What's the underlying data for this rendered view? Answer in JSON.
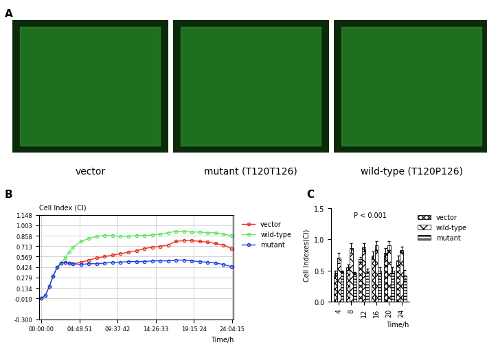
{
  "panel_a": {
    "panel": "A",
    "images": [
      "vector",
      "mutant (T120T126)",
      "wild-type (T120P126)"
    ]
  },
  "chart_data": [
    {
      "panel": "B",
      "type": "line",
      "y_label": "Cell Index (CI)",
      "x_label": "Time/h",
      "x": [
        0,
        0.5,
        1,
        1.5,
        2,
        2.5,
        3,
        3.5,
        4,
        5,
        6,
        7,
        8,
        9,
        10,
        11,
        12,
        13,
        14,
        15,
        16,
        17,
        18,
        19,
        20,
        21,
        22,
        23,
        24
      ],
      "series": [
        {
          "name": "vector",
          "color": "#e8321e",
          "marker": "o",
          "values": [
            -0.01,
            0.03,
            0.15,
            0.3,
            0.42,
            0.48,
            0.49,
            0.48,
            0.47,
            0.49,
            0.52,
            0.55,
            0.57,
            0.59,
            0.61,
            0.63,
            0.65,
            0.68,
            0.7,
            0.71,
            0.73,
            0.78,
            0.79,
            0.79,
            0.78,
            0.77,
            0.75,
            0.73,
            0.68
          ]
        },
        {
          "name": "wild-type",
          "color": "#5ee65e",
          "marker": "o",
          "values": [
            -0.01,
            0.03,
            0.15,
            0.3,
            0.42,
            0.48,
            0.55,
            0.63,
            0.7,
            0.78,
            0.82,
            0.85,
            0.86,
            0.86,
            0.85,
            0.85,
            0.86,
            0.86,
            0.87,
            0.88,
            0.9,
            0.92,
            0.92,
            0.91,
            0.91,
            0.9,
            0.9,
            0.88,
            0.86
          ]
        },
        {
          "name": "mutant",
          "color": "#1e3ee8",
          "marker": "o",
          "values": [
            -0.01,
            0.03,
            0.15,
            0.3,
            0.42,
            0.48,
            0.49,
            0.48,
            0.47,
            0.46,
            0.47,
            0.47,
            0.48,
            0.49,
            0.49,
            0.5,
            0.5,
            0.5,
            0.51,
            0.51,
            0.51,
            0.52,
            0.52,
            0.51,
            0.5,
            0.49,
            0.48,
            0.46,
            0.43
          ]
        }
      ],
      "xlim": [
        -0.3,
        24.3
      ],
      "xticks": [
        {
          "value": 0,
          "label": "00:00:00"
        },
        {
          "value": 4.814,
          "label": "04:48:51"
        },
        {
          "value": 9.628,
          "label": "09:37:42"
        },
        {
          "value": 14.443,
          "label": "14:26:33"
        },
        {
          "value": 19.257,
          "label": "19:15:24"
        },
        {
          "value": 24.071,
          "label": "24:04:15"
        }
      ],
      "ylim": [
        -0.3,
        1.148
      ],
      "yticks": [
        {
          "value": -0.3,
          "label": "-0.300"
        },
        {
          "value": -0.01,
          "label": "-0.010"
        },
        0.134,
        0.279,
        0.424,
        0.569,
        0.713,
        0.858,
        1.003,
        1.148
      ],
      "grid": true,
      "legend": "upper left"
    },
    {
      "panel": "C",
      "type": "bar",
      "y_label": "Cell Indexes(CI)",
      "x_label": "Time/h",
      "annotation": "P < 0.001",
      "categories": [
        "4",
        "8",
        "12",
        "16",
        "20",
        "24"
      ],
      "series": [
        {
          "name": "vector",
          "color": "#ffffff",
          "values": [
            0.46,
            0.55,
            0.68,
            0.74,
            0.78,
            0.66
          ],
          "errors": [
            0.04,
            0.04,
            0.04,
            0.06,
            0.08,
            0.08
          ]
        },
        {
          "name": "wild-type",
          "color": "#ffffff",
          "values": [
            0.7,
            0.86,
            0.87,
            0.9,
            0.9,
            0.83
          ],
          "errors": [
            0.08,
            0.08,
            0.07,
            0.07,
            0.07,
            0.05
          ]
        },
        {
          "name": "mutant",
          "color": "#ffffff",
          "values": [
            0.49,
            0.46,
            0.5,
            0.5,
            0.5,
            0.42
          ],
          "errors": [
            0.01,
            0.02,
            0.03,
            0.05,
            0.05,
            0.09
          ]
        }
      ],
      "ylim": [
        0,
        1.5
      ],
      "yticks": [
        {
          "value": 0,
          "label": "0.0"
        },
        {
          "value": 0.5,
          "label": "0.5"
        },
        {
          "value": 1.0,
          "label": "1.0"
        },
        {
          "value": 1.5,
          "label": "1.5"
        }
      ],
      "grid": false,
      "legend": "upper left"
    }
  ]
}
